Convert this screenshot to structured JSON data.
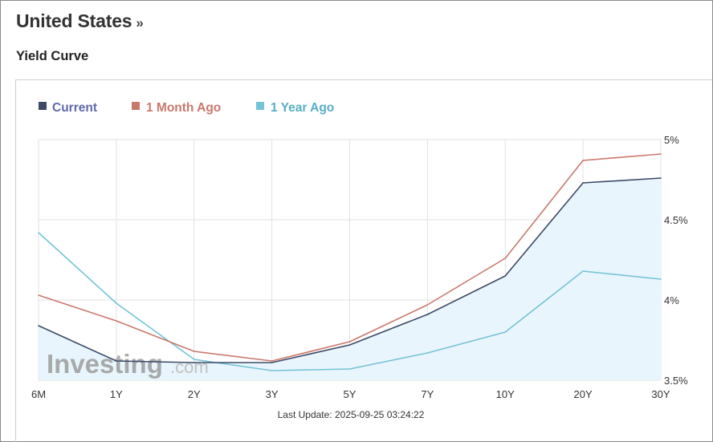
{
  "header": {
    "title": "United States",
    "chevron": "»",
    "section_title": "Yield Curve"
  },
  "footer": {
    "last_update": "Last Update: 2025-09-25 03:24:22"
  },
  "watermark": {
    "brand": "Investing",
    "suffix": ".com"
  },
  "colors": {
    "current": "#3c4a66",
    "month_ago": "#c9786c",
    "year_ago": "#74c3d6",
    "area_fill": "#e9f5fc",
    "grid": "#e2e2e2"
  },
  "chart_data": {
    "type": "line",
    "categories": [
      "6M",
      "1Y",
      "2Y",
      "3Y",
      "5Y",
      "7Y",
      "10Y",
      "20Y",
      "30Y"
    ],
    "series": [
      {
        "name": "Current",
        "key": "current",
        "values": [
          3.84,
          3.62,
          3.61,
          3.61,
          3.72,
          3.91,
          4.15,
          4.73,
          4.76
        ]
      },
      {
        "name": "1 Month Ago",
        "key": "month_ago",
        "values": [
          4.03,
          3.87,
          3.68,
          3.62,
          3.74,
          3.97,
          4.26,
          4.87,
          4.91
        ]
      },
      {
        "name": "1 Year Ago",
        "key": "year_ago",
        "values": [
          4.42,
          3.98,
          3.63,
          3.56,
          3.57,
          3.67,
          3.8,
          4.18,
          4.13
        ]
      }
    ],
    "y_ticks": [
      {
        "value": 5.0,
        "label": "5%"
      },
      {
        "value": 4.5,
        "label": "4.5%"
      },
      {
        "value": 4.0,
        "label": "4%"
      },
      {
        "value": 3.5,
        "label": "3.5%"
      }
    ],
    "ylim": [
      3.5,
      5.0
    ],
    "y_axis_side": "right",
    "legend_position": "top-left",
    "grid": true
  }
}
